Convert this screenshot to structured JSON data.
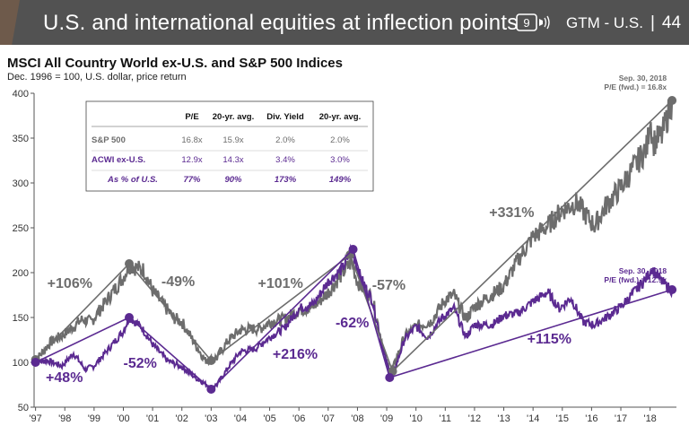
{
  "header": {
    "title": "U.S. and international equities at inflection points",
    "icon": "video-chapter-badge-icon",
    "icon_number": "9",
    "section": "GTM - U.S.",
    "separator": "|",
    "page": "44",
    "accent_color": "#6e5a4b",
    "bg_color": "#525252"
  },
  "chart_data": {
    "type": "line",
    "title": "MSCI All Country World ex-U.S. and S&P 500 Indices",
    "subtitle": "Dec. 1996 = 100, U.S. dollar, price return",
    "x_ticks": [
      "'97",
      "'98",
      "'99",
      "'00",
      "'01",
      "'02",
      "'03",
      "'04",
      "'05",
      "'06",
      "'07",
      "'08",
      "'09",
      "'10",
      "'11",
      "'12",
      "'13",
      "'14",
      "'15",
      "'16",
      "'17",
      "'18"
    ],
    "y_ticks": [
      50,
      100,
      150,
      200,
      250,
      300,
      350,
      400
    ],
    "ylim": [
      50,
      400
    ],
    "xlim": [
      1996.95,
      2018.9
    ],
    "grid": false,
    "series": [
      {
        "name": "S&P 500",
        "color": "#6d6d6d",
        "points": [
          [
            1996.95,
            100
          ],
          [
            1997.5,
            122
          ],
          [
            1998.0,
            132
          ],
          [
            1998.6,
            148
          ],
          [
            1998.9,
            145
          ],
          [
            1999.5,
            172
          ],
          [
            2000.0,
            195
          ],
          [
            2000.2,
            208
          ],
          [
            2000.7,
            203
          ],
          [
            2001.0,
            180
          ],
          [
            2001.7,
            150
          ],
          [
            2002.0,
            145
          ],
          [
            2002.5,
            118
          ],
          [
            2002.8,
            102
          ],
          [
            2003.2,
            105
          ],
          [
            2003.6,
            125
          ],
          [
            2004.0,
            136
          ],
          [
            2004.7,
            138
          ],
          [
            2005.0,
            145
          ],
          [
            2005.5,
            148
          ],
          [
            2006.0,
            158
          ],
          [
            2006.5,
            162
          ],
          [
            2007.0,
            178
          ],
          [
            2007.5,
            200
          ],
          [
            2007.8,
            212
          ],
          [
            2008.0,
            190
          ],
          [
            2008.5,
            172
          ],
          [
            2008.8,
            128
          ],
          [
            2009.0,
            98
          ],
          [
            2009.2,
            92
          ],
          [
            2009.6,
            128
          ],
          [
            2010.0,
            140
          ],
          [
            2010.5,
            145
          ],
          [
            2011.0,
            170
          ],
          [
            2011.3,
            175
          ],
          [
            2011.7,
            148
          ],
          [
            2012.0,
            162
          ],
          [
            2012.7,
            178
          ],
          [
            2013.0,
            185
          ],
          [
            2013.5,
            215
          ],
          [
            2014.0,
            240
          ],
          [
            2014.5,
            252
          ],
          [
            2015.0,
            270
          ],
          [
            2015.5,
            278
          ],
          [
            2015.9,
            260
          ],
          [
            2016.1,
            252
          ],
          [
            2016.5,
            275
          ],
          [
            2017.0,
            295
          ],
          [
            2017.5,
            320
          ],
          [
            2017.9,
            340
          ],
          [
            2018.0,
            375
          ],
          [
            2018.1,
            345
          ],
          [
            2018.4,
            352
          ],
          [
            2018.75,
            392
          ]
        ]
      },
      {
        "name": "ACWI ex-U.S.",
        "color": "#5b2a91",
        "points": [
          [
            1996.95,
            100
          ],
          [
            1997.4,
            102
          ],
          [
            1997.9,
            96
          ],
          [
            1998.3,
            110
          ],
          [
            1998.7,
            92
          ],
          [
            1999.0,
            96
          ],
          [
            1999.5,
            115
          ],
          [
            2000.0,
            135
          ],
          [
            2000.2,
            150
          ],
          [
            2000.6,
            140
          ],
          [
            2001.0,
            120
          ],
          [
            2001.5,
            102
          ],
          [
            2002.0,
            95
          ],
          [
            2002.5,
            82
          ],
          [
            2003.0,
            72
          ],
          [
            2003.2,
            75
          ],
          [
            2003.6,
            95
          ],
          [
            2004.0,
            112
          ],
          [
            2004.5,
            115
          ],
          [
            2005.0,
            128
          ],
          [
            2005.5,
            138
          ],
          [
            2006.0,
            160
          ],
          [
            2006.5,
            165
          ],
          [
            2007.0,
            190
          ],
          [
            2007.5,
            205
          ],
          [
            2007.8,
            226
          ],
          [
            2008.1,
            195
          ],
          [
            2008.5,
            170
          ],
          [
            2008.9,
            110
          ],
          [
            2009.1,
            88
          ],
          [
            2009.2,
            84
          ],
          [
            2009.6,
            125
          ],
          [
            2010.0,
            140
          ],
          [
            2010.4,
            128
          ],
          [
            2010.9,
            150
          ],
          [
            2011.3,
            160
          ],
          [
            2011.7,
            128
          ],
          [
            2012.0,
            142
          ],
          [
            2012.6,
            142
          ],
          [
            2013.0,
            152
          ],
          [
            2013.5,
            155
          ],
          [
            2014.0,
            168
          ],
          [
            2014.5,
            178
          ],
          [
            2014.9,
            160
          ],
          [
            2015.3,
            172
          ],
          [
            2015.7,
            145
          ],
          [
            2016.1,
            142
          ],
          [
            2016.5,
            150
          ],
          [
            2017.0,
            162
          ],
          [
            2017.5,
            180
          ],
          [
            2017.9,
            195
          ],
          [
            2018.05,
            205
          ],
          [
            2018.4,
            190
          ],
          [
            2018.75,
            180
          ]
        ]
      }
    ],
    "trend_lines": [
      {
        "series": "S&P 500",
        "points": [
          [
            1997.0,
            103
          ],
          [
            2000.2,
            210
          ],
          [
            2003.0,
            102
          ],
          [
            2007.75,
            220
          ],
          [
            2009.2,
            90
          ],
          [
            2018.75,
            392
          ]
        ]
      },
      {
        "series": "ACWI ex-U.S.",
        "points": [
          [
            1997.0,
            100
          ],
          [
            2000.2,
            150
          ],
          [
            2003.0,
            70
          ],
          [
            2007.85,
            226
          ],
          [
            2009.1,
            83
          ],
          [
            2018.75,
            181
          ]
        ]
      }
    ],
    "annotations": [
      {
        "text": "+106%",
        "x": 1997.4,
        "y": 183,
        "color": "#6d6d6d"
      },
      {
        "text": "-49%",
        "x": 2001.3,
        "y": 185,
        "color": "#6d6d6d"
      },
      {
        "text": "+101%",
        "x": 2004.6,
        "y": 183,
        "color": "#6d6d6d"
      },
      {
        "text": "-57%",
        "x": 2008.5,
        "y": 181,
        "color": "#6d6d6d"
      },
      {
        "text": "+331%",
        "x": 2012.5,
        "y": 262,
        "color": "#6d6d6d"
      },
      {
        "text": "+48%",
        "x": 1997.35,
        "y": 78,
        "color": "#5b2a91"
      },
      {
        "text": "-52%",
        "x": 2000.0,
        "y": 94,
        "color": "#5b2a91"
      },
      {
        "text": "+216%",
        "x": 2005.1,
        "y": 104,
        "color": "#5b2a91"
      },
      {
        "text": "-62%",
        "x": 2007.25,
        "y": 139,
        "color": "#5b2a91"
      },
      {
        "text": "+115%",
        "x": 2013.8,
        "y": 121,
        "color": "#5b2a91"
      }
    ],
    "endpoint_labels": [
      {
        "line1": "Sep. 30, 2018",
        "line2": "P/E (fwd.) = 16.8x",
        "x": 2018.75,
        "y": 392,
        "color": "#6d6d6d"
      },
      {
        "line1": "Sep. 30, 2018",
        "line2": "P/E (fwd.) = 12.9x",
        "x": 2018.75,
        "y": 181,
        "color": "#5b2a91"
      }
    ],
    "table": {
      "headers": [
        "",
        "P/E",
        "20-yr. avg.",
        "Div. Yield",
        "20-yr. avg."
      ],
      "rows": [
        {
          "label": "S&P 500",
          "values": [
            "16.8x",
            "15.9x",
            "2.0%",
            "2.0%"
          ],
          "color": "#6d6d6d",
          "italic": false
        },
        {
          "label": "ACWI ex-U.S.",
          "values": [
            "12.9x",
            "14.3x",
            "3.4%",
            "3.0%"
          ],
          "color": "#5b2a91",
          "italic": false
        },
        {
          "label": "As % of U.S.",
          "values": [
            "77%",
            "90%",
            "173%",
            "149%"
          ],
          "color": "#5b2a91",
          "italic": true
        }
      ]
    }
  }
}
